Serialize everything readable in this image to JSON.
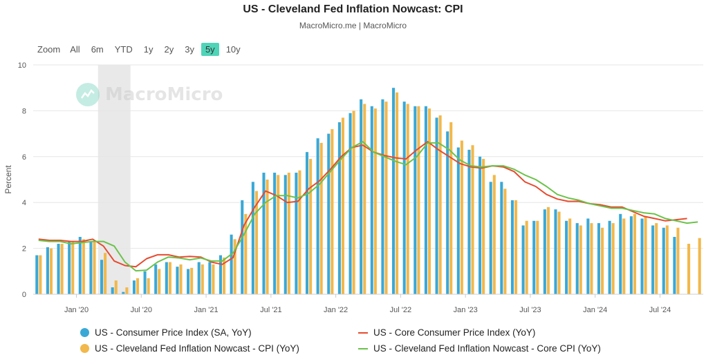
{
  "header": {
    "title": "US - Cleveland Fed Inflation Nowcast: CPI",
    "subtitle": "MacroMicro.me | MacroMicro"
  },
  "range_selector": {
    "zoom_label": "Zoom",
    "options": [
      "All",
      "6m",
      "YTD",
      "1y",
      "2y",
      "3y",
      "5y",
      "10y"
    ],
    "active": "5y"
  },
  "watermark": {
    "text": "MacroMicro"
  },
  "colors": {
    "cpi": "#3aa8d6",
    "nowcast_cpi": "#f2b84b",
    "core_cpi": "#e64a2e",
    "nowcast_core": "#6bc24a",
    "recession_band": "#e9e9e9",
    "grid": "#e6e6e6"
  },
  "chart_data": {
    "type": "bar",
    "ylabel": "Percent",
    "ylim": [
      0,
      10
    ],
    "yticks": [
      "0",
      "2",
      "4",
      "6",
      "8",
      "10"
    ],
    "xticks": [
      {
        "label": "Jan '20",
        "month": "2020-01"
      },
      {
        "label": "Jul '20",
        "month": "2020-07"
      },
      {
        "label": "Jan '21",
        "month": "2021-01"
      },
      {
        "label": "Jul '21",
        "month": "2021-07"
      },
      {
        "label": "Jan '22",
        "month": "2022-01"
      },
      {
        "label": "Jul '22",
        "month": "2022-07"
      },
      {
        "label": "Jan '23",
        "month": "2023-01"
      },
      {
        "label": "Jul '23",
        "month": "2023-07"
      },
      {
        "label": "Jan '24",
        "month": "2024-01"
      },
      {
        "label": "Jul '24",
        "month": "2024-07"
      }
    ],
    "months": [
      "2019-09",
      "2019-10",
      "2019-11",
      "2019-12",
      "2020-01",
      "2020-02",
      "2020-03",
      "2020-04",
      "2020-05",
      "2020-06",
      "2020-07",
      "2020-08",
      "2020-09",
      "2020-10",
      "2020-11",
      "2020-12",
      "2021-01",
      "2021-02",
      "2021-03",
      "2021-04",
      "2021-05",
      "2021-06",
      "2021-07",
      "2021-08",
      "2021-09",
      "2021-10",
      "2021-11",
      "2021-12",
      "2022-01",
      "2022-02",
      "2022-03",
      "2022-04",
      "2022-05",
      "2022-06",
      "2022-07",
      "2022-08",
      "2022-09",
      "2022-10",
      "2022-11",
      "2022-12",
      "2023-01",
      "2023-02",
      "2023-03",
      "2023-04",
      "2023-05",
      "2023-06",
      "2023-07",
      "2023-08",
      "2023-09",
      "2023-10",
      "2023-11",
      "2023-12",
      "2024-01",
      "2024-02",
      "2024-03",
      "2024-04",
      "2024-05",
      "2024-06",
      "2024-07",
      "2024-08",
      "2024-09",
      "2024-10"
    ],
    "recession_band": {
      "start": "2020-03",
      "end": "2020-05"
    },
    "series": [
      {
        "name": "US - Consumer Price Index (SA, YoY)",
        "kind": "bar",
        "values": [
          1.7,
          2.05,
          2.2,
          2.3,
          2.5,
          2.3,
          1.5,
          0.3,
          0.1,
          0.6,
          1.0,
          1.3,
          1.4,
          1.2,
          1.1,
          1.4,
          1.4,
          1.7,
          2.6,
          4.1,
          4.9,
          5.3,
          5.3,
          5.2,
          5.3,
          6.2,
          6.8,
          7.0,
          7.5,
          7.9,
          8.5,
          8.2,
          8.5,
          9.0,
          8.4,
          8.2,
          8.2,
          7.7,
          7.1,
          6.4,
          6.3,
          6.0,
          4.9,
          4.9,
          4.1,
          3.0,
          3.2,
          3.7,
          3.7,
          3.2,
          3.1,
          3.3,
          3.1,
          3.2,
          3.5,
          3.4,
          3.3,
          3.0,
          2.9,
          2.5,
          null,
          null
        ]
      },
      {
        "name": "US - Cleveland Fed Inflation Nowcast - CPI (YoY)",
        "kind": "bar",
        "values": [
          1.7,
          2.0,
          2.2,
          2.3,
          2.4,
          2.3,
          1.8,
          0.6,
          0.3,
          0.7,
          0.7,
          1.1,
          1.4,
          1.3,
          1.15,
          1.3,
          1.3,
          1.6,
          2.4,
          3.5,
          4.5,
          5.0,
          5.2,
          5.3,
          5.4,
          5.9,
          6.6,
          7.2,
          7.7,
          8.0,
          8.3,
          8.1,
          8.4,
          8.8,
          8.3,
          8.2,
          8.1,
          7.8,
          7.5,
          6.7,
          6.5,
          5.9,
          5.2,
          4.6,
          4.1,
          3.2,
          3.2,
          3.8,
          3.6,
          3.3,
          3.0,
          3.1,
          2.9,
          3.1,
          3.3,
          3.5,
          3.4,
          3.1,
          3.0,
          2.9,
          2.2,
          2.45
        ]
      },
      {
        "name": "US - Core Consumer Price Index (YoY)",
        "kind": "line",
        "values": [
          2.4,
          2.35,
          2.35,
          2.3,
          2.3,
          2.4,
          2.1,
          1.45,
          1.25,
          1.2,
          1.55,
          1.72,
          1.72,
          1.62,
          1.65,
          1.62,
          1.4,
          1.3,
          1.6,
          3.0,
          3.8,
          4.5,
          4.3,
          4.0,
          4.05,
          4.6,
          4.95,
          5.45,
          6.0,
          6.4,
          6.5,
          6.2,
          6.05,
          5.95,
          5.9,
          6.3,
          6.65,
          6.3,
          6.0,
          5.7,
          5.55,
          5.5,
          5.6,
          5.55,
          5.35,
          4.9,
          4.7,
          4.35,
          4.15,
          4.05,
          4.05,
          3.95,
          3.9,
          3.8,
          3.8,
          3.6,
          3.4,
          3.3,
          3.2,
          3.25,
          3.3,
          null
        ]
      },
      {
        "name": "US - Cleveland Fed Inflation Nowcast - Core CPI (YoY)",
        "kind": "line",
        "values": [
          2.35,
          2.3,
          2.3,
          2.2,
          2.25,
          2.3,
          2.3,
          2.1,
          1.4,
          1.02,
          1.05,
          1.4,
          1.62,
          1.58,
          1.5,
          1.58,
          1.45,
          1.45,
          1.8,
          2.6,
          3.5,
          4.0,
          4.3,
          4.3,
          4.2,
          4.4,
          4.8,
          5.35,
          5.9,
          6.4,
          6.65,
          6.2,
          6.0,
          5.8,
          5.65,
          6.0,
          6.6,
          6.6,
          6.3,
          5.85,
          5.6,
          5.55,
          5.6,
          5.6,
          5.45,
          5.2,
          5.0,
          4.7,
          4.35,
          4.2,
          4.1,
          3.95,
          3.85,
          3.75,
          3.75,
          3.65,
          3.55,
          3.5,
          3.3,
          3.2,
          3.1,
          3.15
        ]
      }
    ]
  },
  "legend": [
    {
      "label": "US - Consumer Price Index (SA, YoY)",
      "marker": "dot",
      "color": "#3aa8d6"
    },
    {
      "label": "US - Core Consumer Price Index (YoY)",
      "marker": "line",
      "color": "#e64a2e"
    },
    {
      "label": "US - Cleveland Fed Inflation Nowcast - CPI (YoY)",
      "marker": "dot",
      "color": "#f2b84b"
    },
    {
      "label": "US - Cleveland Fed Inflation Nowcast - Core CPI (YoY)",
      "marker": "line",
      "color": "#6bc24a"
    }
  ]
}
